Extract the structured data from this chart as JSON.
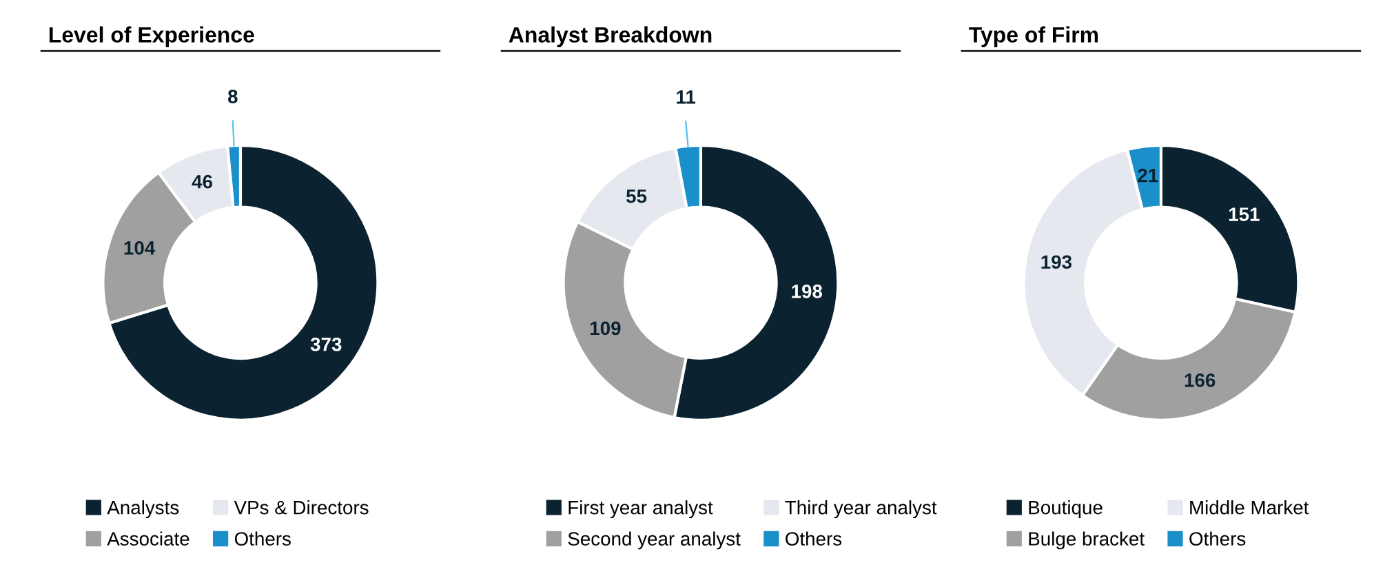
{
  "chart_data": [
    {
      "type": "donut",
      "title": "Level of Experience",
      "categories": [
        "Analysts",
        "Associate",
        "VPs & Directors",
        "Others"
      ],
      "values": [
        373,
        104,
        46,
        8
      ],
      "colors": [
        "#0b2230",
        "#a0a0a0",
        "#e6e8f0",
        "#1a8fc9"
      ],
      "data_labels": true,
      "legend": "bottom"
    },
    {
      "type": "donut",
      "title": "Analyst Breakdown",
      "categories": [
        "First year analyst",
        "Second year analyst",
        "Third year analyst",
        "Others"
      ],
      "values": [
        198,
        109,
        55,
        11
      ],
      "colors": [
        "#0b2230",
        "#a0a0a0",
        "#e6e8f0",
        "#1a8fc9"
      ],
      "data_labels": true,
      "legend": "bottom"
    },
    {
      "type": "donut",
      "title": "Type of Firm",
      "categories": [
        "Boutique",
        "Bulge bracket",
        "Middle Market",
        "Others"
      ],
      "values": [
        151,
        166,
        193,
        21
      ],
      "colors": [
        "#0b2230",
        "#a0a0a0",
        "#e6e8f0",
        "#1a8fc9"
      ],
      "data_labels": true,
      "legend": "bottom"
    }
  ]
}
